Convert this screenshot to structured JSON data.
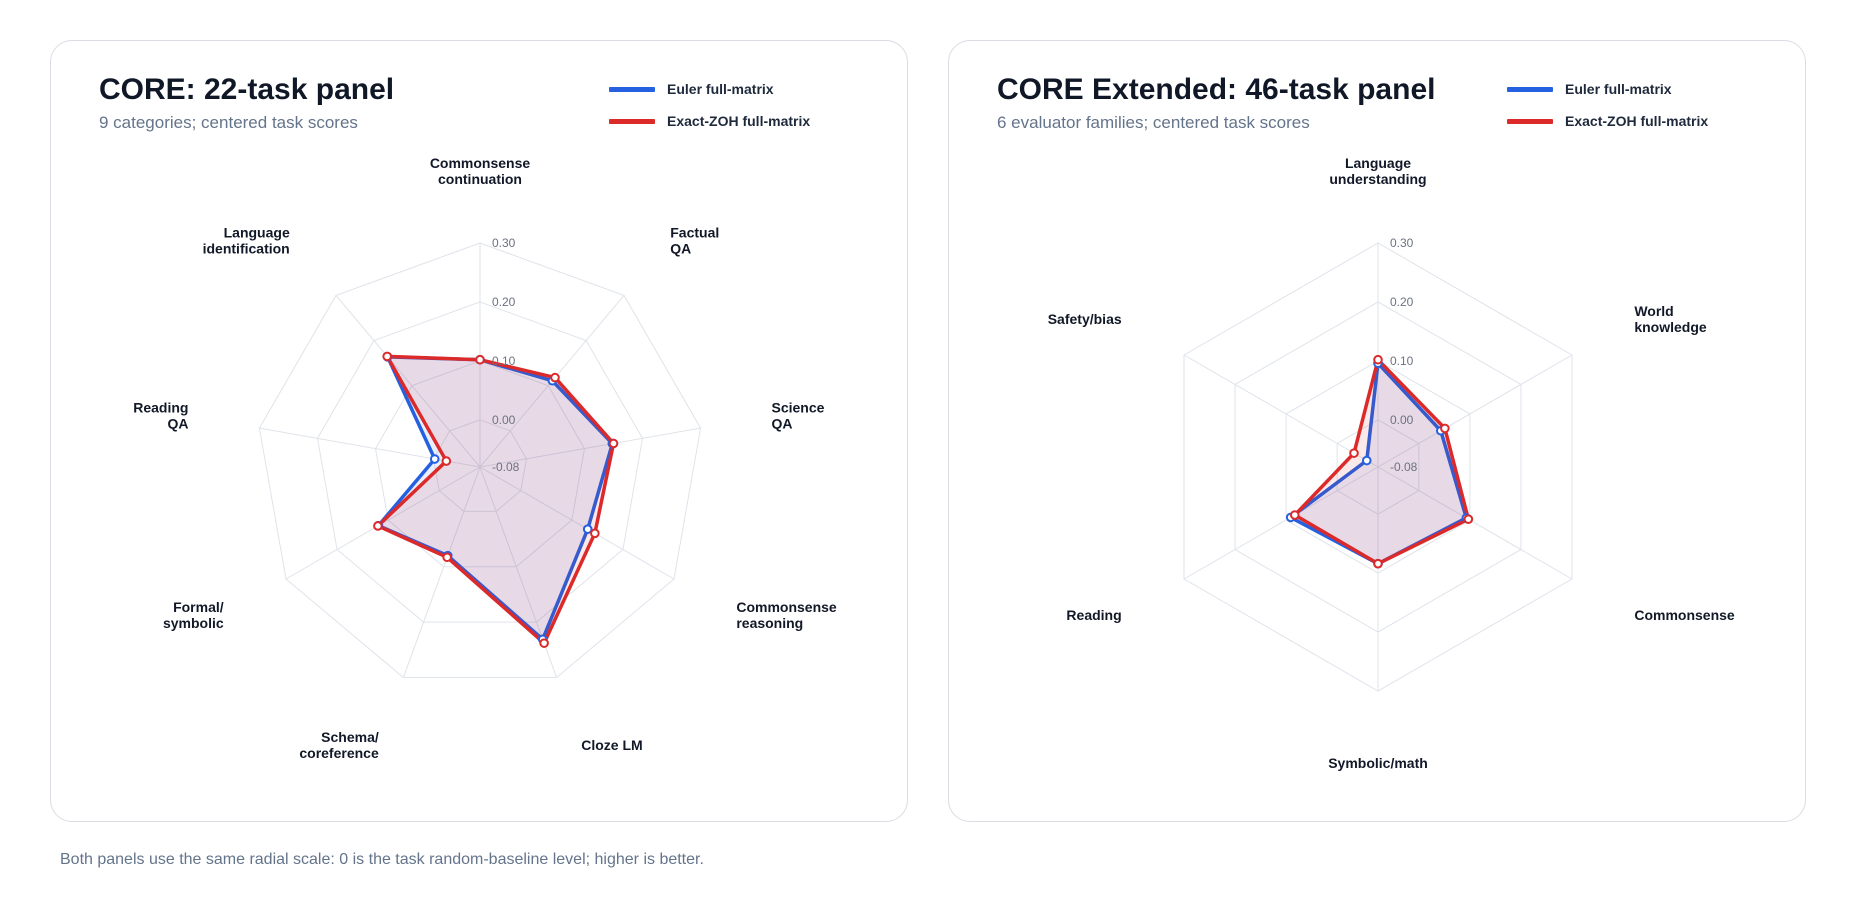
{
  "colors": {
    "euler": "#2560e0",
    "zoh": "#dc2a2a",
    "grid": "#dfe3ea",
    "tick": "#6b7280"
  },
  "footer": {
    "caption": "Both panels use the same radial scale: 0 is the task random-baseline level; higher is better."
  },
  "chart_data": [
    {
      "type": "radar",
      "title": "CORE: 22-task panel",
      "subtitle": "9 categories; centered task scores",
      "legend": {
        "placement": "top-right"
      },
      "r_range": [
        -0.08,
        0.3
      ],
      "r_ticks": [
        -0.08,
        0.0,
        0.1,
        0.2,
        0.3
      ],
      "r_tick_labels": [
        "-0.08",
        "0.00",
        "0.10",
        "0.20",
        "0.30"
      ],
      "categories": [
        [
          "Commonsense",
          "continuation"
        ],
        [
          "Factual",
          "QA"
        ],
        [
          "Science",
          "QA"
        ],
        [
          "Commonsense",
          "reasoning"
        ],
        [
          "Cloze LM"
        ],
        [
          "Schema/",
          "coreference"
        ],
        [
          "Formal/",
          "symbolic"
        ],
        [
          "Reading",
          "QA"
        ],
        [
          "Language",
          "identification"
        ]
      ],
      "series": [
        {
          "name": "Euler full-matrix",
          "values": [
            0.102,
            0.111,
            0.148,
            0.131,
            0.231,
            0.08,
            0.119,
            -0.002,
            0.164
          ]
        },
        {
          "name": "Exact-ZOH full-matrix",
          "values": [
            0.102,
            0.118,
            0.15,
            0.145,
            0.238,
            0.083,
            0.12,
            -0.022,
            0.165
          ]
        }
      ]
    },
    {
      "type": "radar",
      "title": "CORE Extended: 46-task panel",
      "subtitle": "6 evaluator families; centered task scores",
      "legend": {
        "placement": "top-right"
      },
      "r_range": [
        -0.08,
        0.3
      ],
      "r_ticks": [
        -0.08,
        0.0,
        0.1,
        0.2,
        0.3
      ],
      "r_tick_labels": [
        "-0.08",
        "0.00",
        "0.10",
        "0.20",
        "0.30"
      ],
      "categories": [
        [
          "Language",
          "understanding"
        ],
        [
          "World",
          "knowledge"
        ],
        [
          "Commonsense"
        ],
        [
          "Symbolic/math"
        ],
        [
          "Reading"
        ],
        [
          "Safety/bias"
        ]
      ],
      "series": [
        {
          "name": "Euler full-matrix",
          "values": [
            0.096,
            0.043,
            0.093,
            0.084,
            0.091,
            -0.058
          ]
        },
        {
          "name": "Exact-ZOH full-matrix",
          "values": [
            0.102,
            0.051,
            0.097,
            0.084,
            0.083,
            -0.033
          ]
        }
      ]
    }
  ]
}
